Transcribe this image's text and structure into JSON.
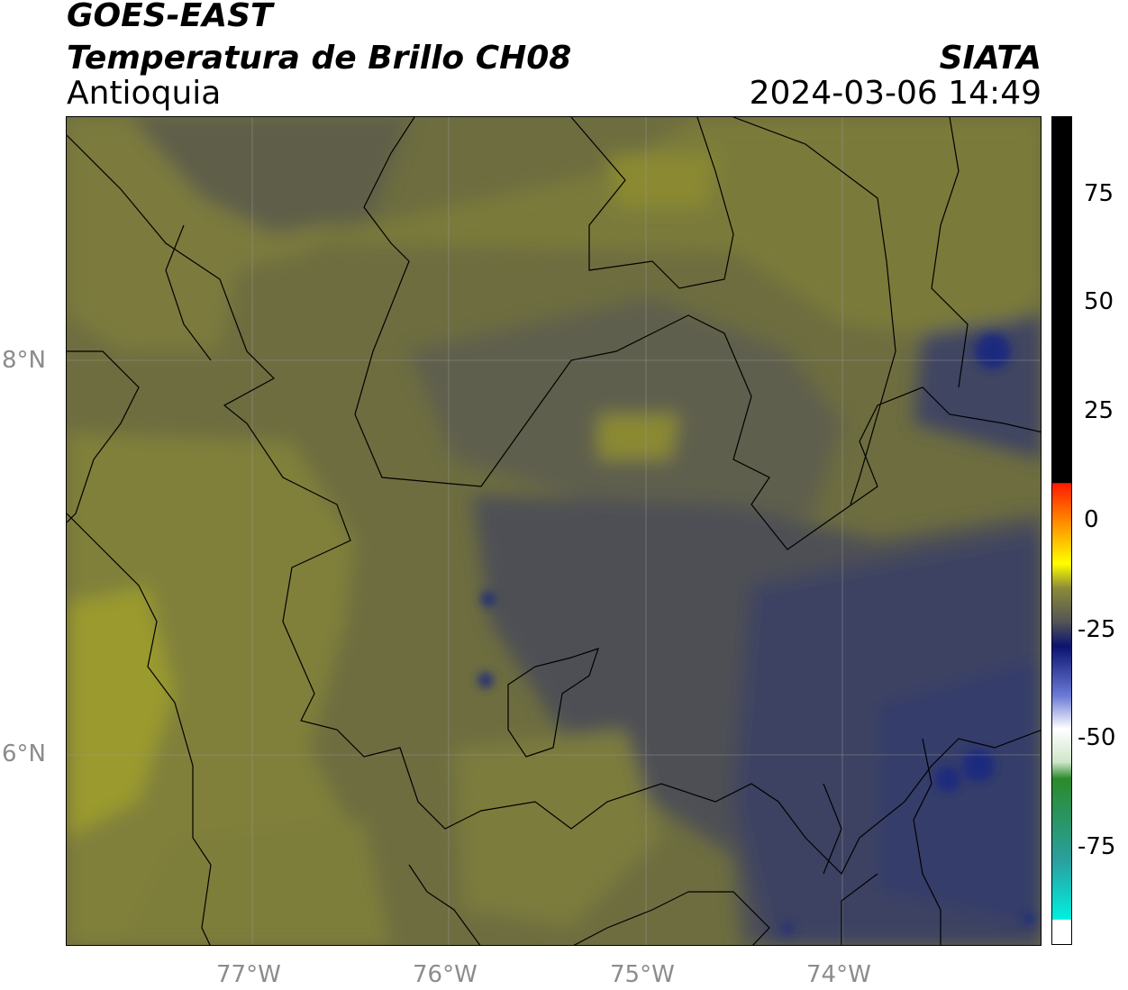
{
  "header": {
    "line1": "GOES-EAST",
    "line2": "Temperatura de Brillo CH08",
    "line3": "Antioquia",
    "agency": "SIATA",
    "datetime": "2024-03-06 14:49"
  },
  "map": {
    "lat_labels": [
      "8°N",
      "6°N"
    ],
    "lon_labels": [
      "77°W",
      "76°W",
      "75°W",
      "74°W"
    ],
    "palette": {
      "olive_light": "#8b8a33",
      "olive": "#6f6f3f",
      "dark_gray": "#4f4f4f",
      "navy": "#3a3f62",
      "deep_blue": "#1d2a7e"
    }
  },
  "colorbar": {
    "ticks": [
      "75",
      "50",
      "25",
      "0",
      "-25",
      "-50",
      "-75"
    ],
    "colors": {
      "black": "#000000",
      "red": "#ff2b00",
      "orange": "#ff9900",
      "yellow": "#ffff00",
      "olive": "#7a7a3e",
      "gray": "#555555",
      "navy": "#0b136f",
      "blue": "#3d4ccb",
      "white": "#ffffff",
      "green": "#2b8a2b",
      "cyan": "#00f0e0"
    }
  }
}
